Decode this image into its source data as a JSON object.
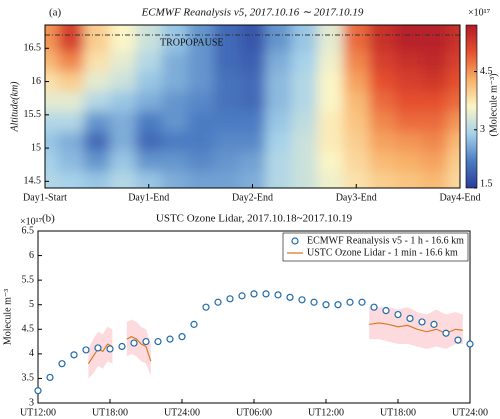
{
  "chart_data": [
    {
      "type": "heatmap",
      "panel": "(a)",
      "title": "ECMWF Reanalysis v5, 2017.10.16 ∼ 2017.10.19",
      "ylabel": "Altitude(km)",
      "annotation": {
        "text": "TROPOPAUSE",
        "y": 16.7
      },
      "xlim": [
        0,
        4
      ],
      "ylim": [
        14.4,
        16.85
      ],
      "xticks": [
        {
          "value": 0,
          "label": "Day1-Start"
        },
        {
          "value": 1,
          "label": "Day1-End"
        },
        {
          "value": 2,
          "label": "Day2-End"
        },
        {
          "value": 3,
          "label": "Day3-End"
        },
        {
          "value": 4,
          "label": "Day4-End"
        }
      ],
      "yticks": [
        14.5,
        15,
        15.5,
        16,
        16.5
      ],
      "x": [
        0,
        0.25,
        0.5,
        0.75,
        1,
        1.25,
        1.5,
        1.75,
        2,
        2.25,
        2.5,
        2.75,
        3,
        3.25,
        3.5,
        3.75,
        4
      ],
      "y": [
        16.6,
        16.3,
        16.0,
        15.7,
        15.4,
        15.1,
        14.8,
        14.5
      ],
      "z": [
        [
          4.5,
          5.2,
          4.0,
          3.6,
          3.2,
          2.8,
          2.4,
          2.0,
          1.8,
          2.4,
          2.8,
          3.4,
          4.8,
          5.4,
          5.6,
          5.6,
          5.4
        ],
        [
          4.2,
          4.6,
          3.8,
          3.4,
          3.0,
          2.6,
          2.4,
          2.0,
          1.9,
          2.6,
          2.9,
          3.5,
          4.6,
          5.2,
          5.4,
          5.5,
          5.2
        ],
        [
          3.8,
          4.0,
          3.4,
          3.2,
          2.8,
          2.6,
          2.4,
          2.1,
          2.0,
          2.7,
          3.0,
          3.6,
          4.4,
          5.0,
          5.2,
          5.3,
          5.0
        ],
        [
          3.4,
          3.4,
          3.0,
          2.8,
          2.6,
          2.4,
          2.3,
          2.1,
          2.0,
          2.7,
          3.0,
          3.6,
          4.2,
          4.8,
          5.0,
          5.0,
          4.8
        ],
        [
          3.0,
          3.0,
          2.4,
          2.6,
          2.2,
          2.4,
          2.2,
          2.2,
          2.2,
          2.8,
          3.1,
          3.7,
          4.1,
          4.6,
          4.8,
          4.8,
          4.5
        ],
        [
          2.8,
          2.6,
          2.0,
          2.6,
          2.0,
          2.2,
          2.2,
          2.3,
          2.3,
          2.9,
          3.2,
          3.7,
          4.0,
          4.4,
          4.5,
          4.6,
          4.2
        ],
        [
          2.9,
          2.7,
          2.4,
          2.8,
          2.4,
          2.4,
          2.3,
          2.4,
          2.5,
          3.0,
          3.2,
          3.6,
          3.9,
          4.2,
          4.3,
          4.4,
          4.0
        ],
        [
          3.0,
          2.9,
          2.8,
          3.0,
          2.8,
          2.6,
          2.5,
          2.5,
          2.6,
          3.0,
          3.2,
          3.5,
          3.8,
          4.0,
          4.1,
          4.2,
          3.9
        ]
      ],
      "clim": [
        1.5,
        5.7
      ],
      "cticks": [
        1.5,
        3,
        4.5
      ],
      "colorbar_scale": "×10¹⁷",
      "colorbar_label": "(Molecule m⁻³)",
      "colormap": [
        "#2a3c9b",
        "#4b7cc2",
        "#a6d2ea",
        "#fbf5c6",
        "#f8b066",
        "#e5502e",
        "#b01a2a"
      ]
    },
    {
      "type": "line",
      "panel": "(b)",
      "title": "USTC Ozone Lidar, 2017.10.18~2017.10.19",
      "ylabel": "Molecule m⁻³",
      "yscale_label": "×10¹⁷",
      "xlim": [
        0,
        36
      ],
      "ylim": [
        3,
        6.5
      ],
      "xticks": [
        {
          "value": 0,
          "label": "UT12:00"
        },
        {
          "value": 6,
          "label": "UT18:00"
        },
        {
          "value": 12,
          "label": "UT24:00"
        },
        {
          "value": 18,
          "label": "UT06:00"
        },
        {
          "value": 24,
          "label": "UT12:00"
        },
        {
          "value": 30,
          "label": "UT18:00"
        },
        {
          "value": 36,
          "label": "UT24:00"
        }
      ],
      "yticks": [
        3,
        3.5,
        4,
        4.5,
        5,
        5.5,
        6,
        6.5
      ],
      "series": [
        {
          "name": "ECMWF Reanalysis v5 - 1 h - 16.6 km",
          "style": "markers",
          "color": "#1f6aa8",
          "x": [
            0,
            1,
            2,
            3,
            4,
            5,
            6,
            7,
            8,
            9,
            10,
            11,
            12,
            13,
            14,
            15,
            16,
            17,
            18,
            19,
            20,
            21,
            22,
            23,
            24,
            25,
            26,
            27,
            28,
            29,
            30,
            31,
            32,
            33,
            34,
            35,
            36
          ],
          "values": [
            3.25,
            3.52,
            3.8,
            3.98,
            4.08,
            4.12,
            4.1,
            4.15,
            4.22,
            4.25,
            4.25,
            4.3,
            4.35,
            4.6,
            4.95,
            5.05,
            5.12,
            5.18,
            5.22,
            5.22,
            5.2,
            5.15,
            5.1,
            5.05,
            5.0,
            5.0,
            5.05,
            5.05,
            4.95,
            4.88,
            4.8,
            4.72,
            4.65,
            4.6,
            4.42,
            4.28,
            4.2
          ]
        },
        {
          "name": "USTC Ozone Lidar - 1 min - 16.6 km",
          "style": "line",
          "color": "#d9731a",
          "band_color": "#fbd3d8",
          "x": [
            4.2,
            4.6,
            5.0,
            5.4,
            5.8,
            6.2,
            null,
            7.4,
            7.8,
            8.2,
            8.6,
            9.0,
            9.4,
            null,
            27.6,
            28.4,
            29.2,
            30,
            30.8,
            31.6,
            32.4,
            33.2,
            34,
            34.8,
            35.4
          ],
          "values": [
            3.8,
            3.95,
            4.1,
            4.05,
            4.2,
            4.15,
            null,
            4.3,
            4.35,
            4.3,
            4.2,
            4.15,
            3.85,
            null,
            4.6,
            4.63,
            4.6,
            4.55,
            4.58,
            4.5,
            4.45,
            4.5,
            4.42,
            4.5,
            4.48
          ],
          "lower": [
            3.5,
            3.6,
            3.75,
            3.7,
            3.85,
            3.8,
            null,
            3.95,
            4.0,
            3.95,
            3.85,
            3.8,
            3.55,
            null,
            4.3,
            4.3,
            4.25,
            4.2,
            4.2,
            4.15,
            4.1,
            4.15,
            4.1,
            4.2,
            4.2
          ],
          "upper": [
            4.1,
            4.3,
            4.45,
            4.4,
            4.55,
            4.5,
            null,
            4.65,
            4.7,
            4.65,
            4.55,
            4.5,
            4.2,
            null,
            4.95,
            4.95,
            4.95,
            4.9,
            4.95,
            4.85,
            4.8,
            4.9,
            4.8,
            4.85,
            4.8
          ]
        }
      ]
    }
  ]
}
